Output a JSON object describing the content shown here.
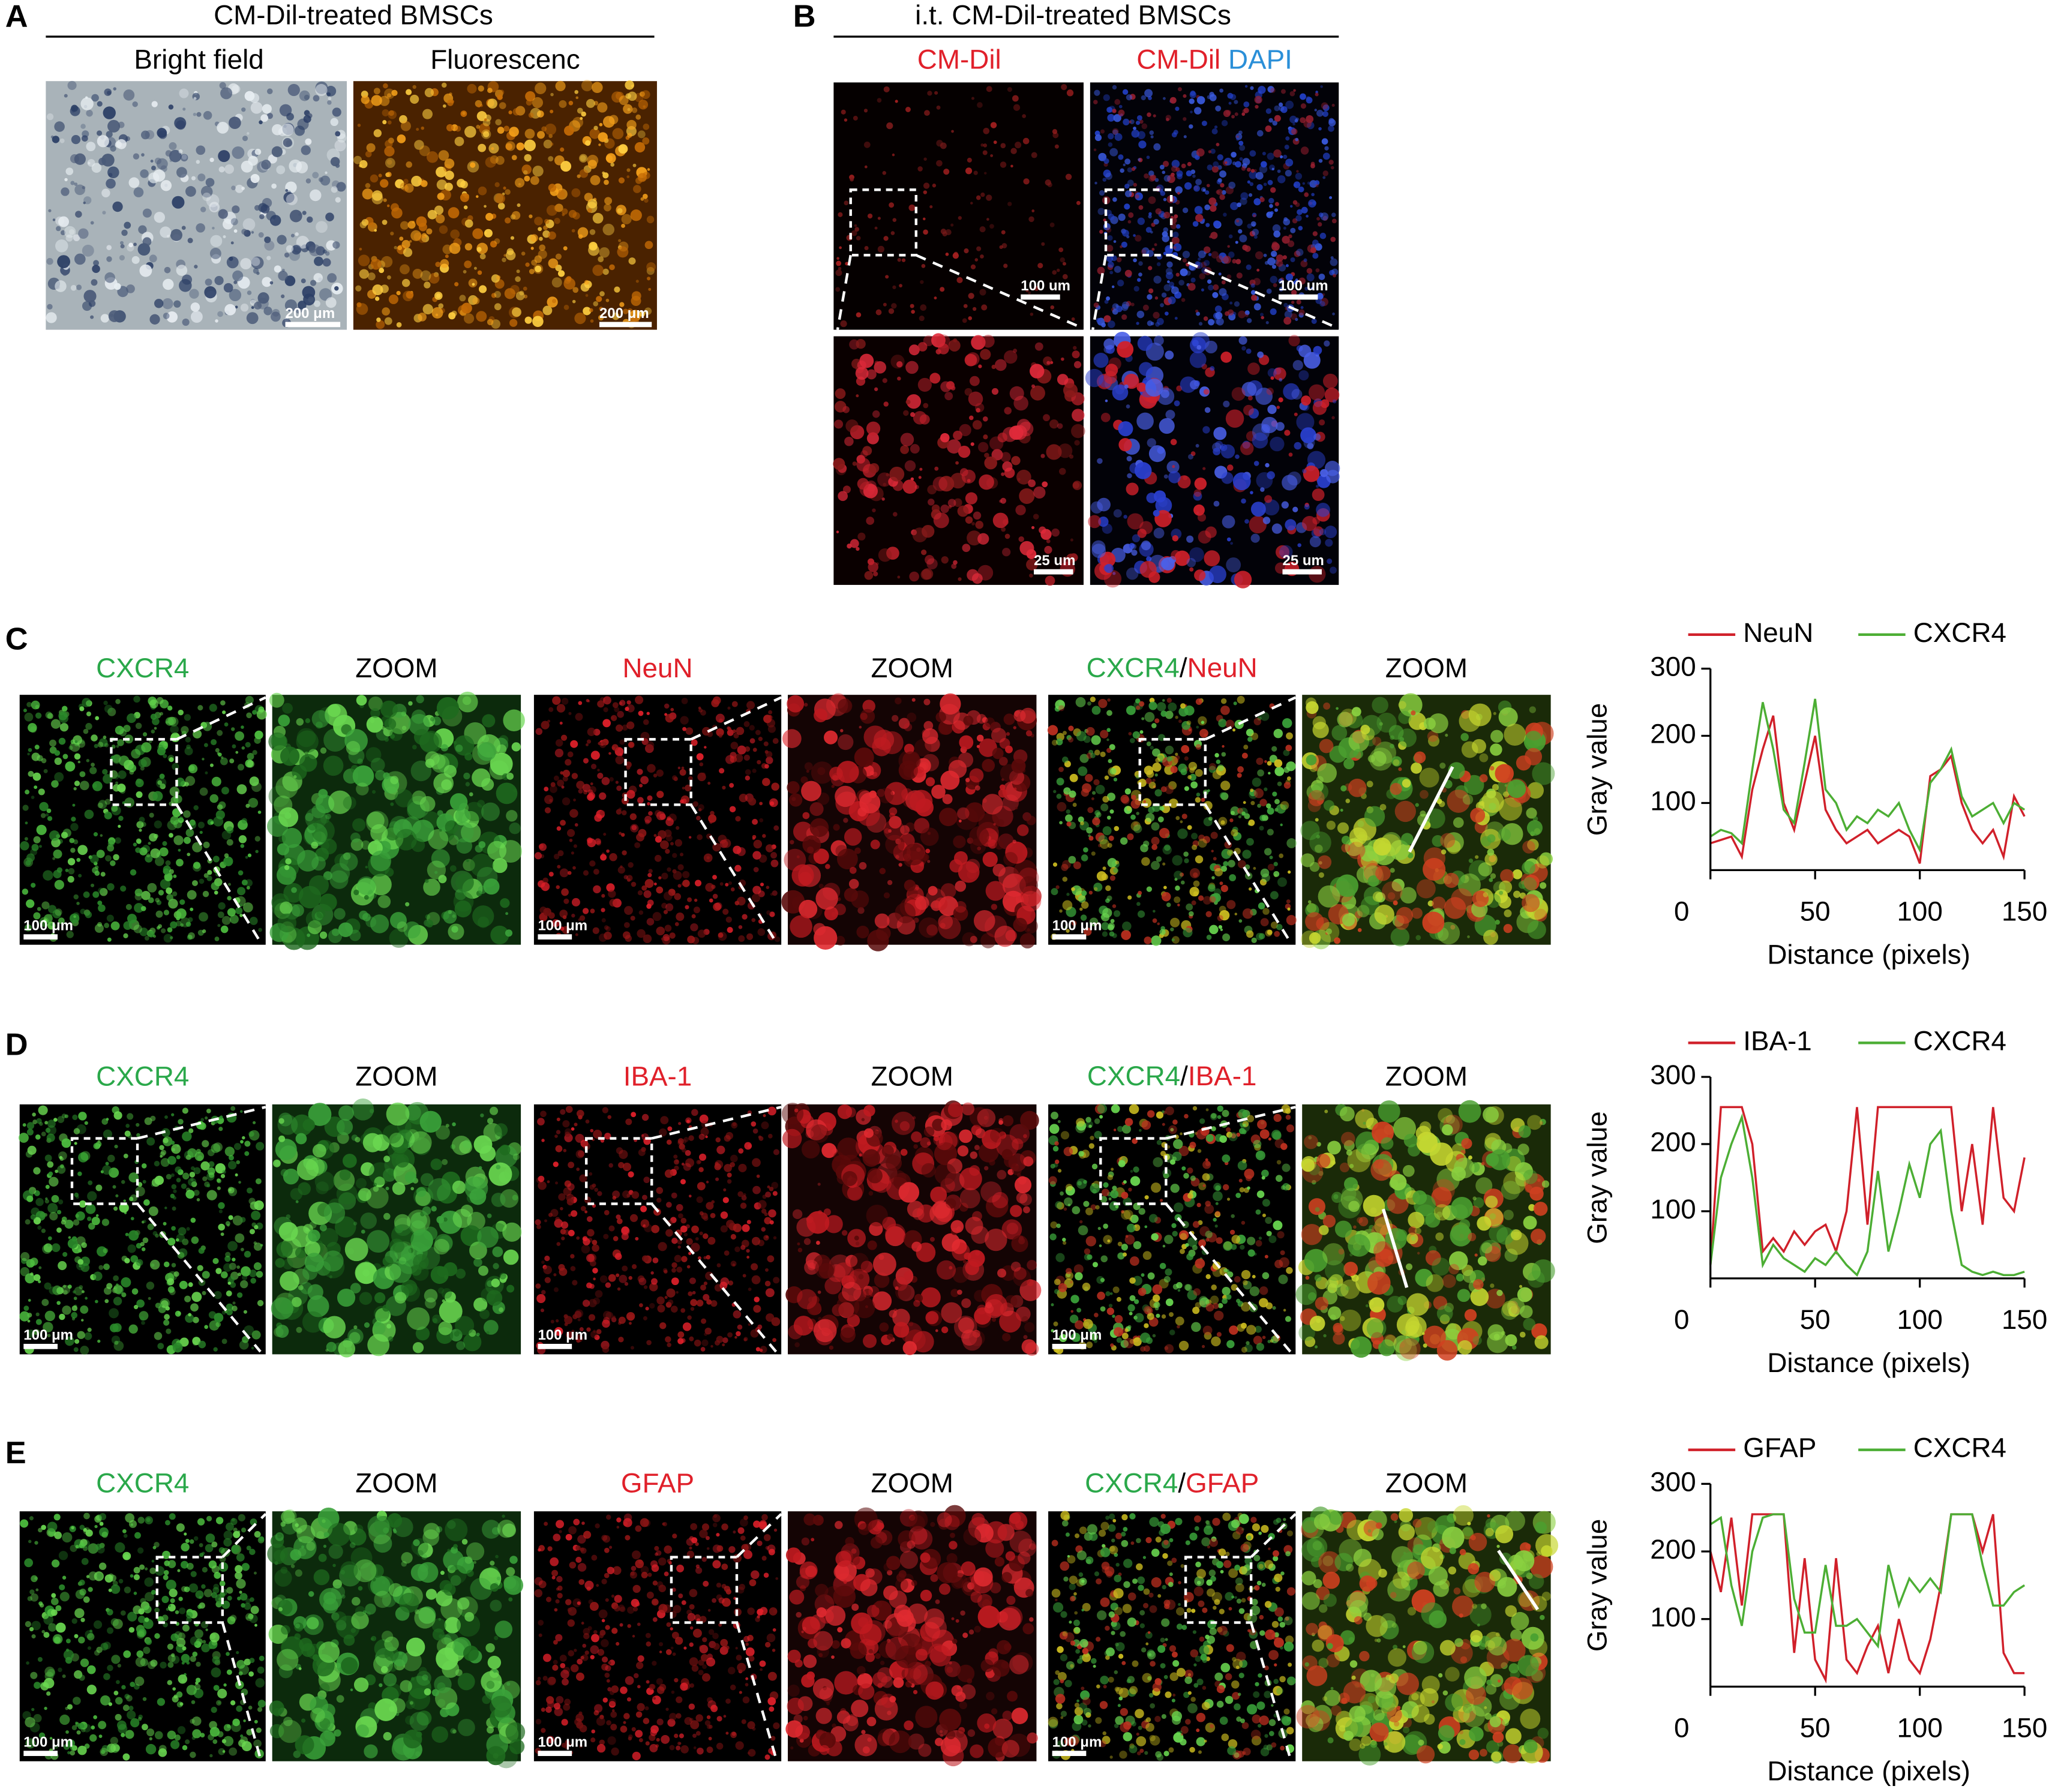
{
  "figure": {
    "A": {
      "letter": "A",
      "title": "CM-Dil-treated BMSCs",
      "columns": [
        "Bright field",
        "Fluorescenc"
      ],
      "scale_bars": [
        "200 μm",
        "200 μm"
      ]
    },
    "B": {
      "letter": "B",
      "title": "i.t. CM-Dil-treated BMSCs",
      "column1": "CM-Dil",
      "column2": [
        "CM-Dil",
        "DAPI"
      ],
      "scale_bars": [
        "100 um",
        "100 um",
        "25 um",
        "25 um"
      ]
    },
    "rows": [
      {
        "letter": "C",
        "labels": [
          "CXCR4",
          "ZOOM",
          "NeuN",
          "ZOOM"
        ],
        "merge": [
          "CXCR4",
          "/",
          "NeuN"
        ],
        "merge_zoom": "ZOOM",
        "scale_bars": [
          "100 μm",
          "100 μm",
          "100 μm"
        ]
      },
      {
        "letter": "D",
        "labels": [
          "CXCR4",
          "ZOOM",
          "IBA-1",
          "ZOOM"
        ],
        "merge": [
          "CXCR4",
          "/",
          "IBA-1"
        ],
        "merge_zoom": "ZOOM",
        "scale_bars": [
          "100 μm",
          "100 μm",
          "100 μm"
        ]
      },
      {
        "letter": "E",
        "labels": [
          "CXCR4",
          "ZOOM",
          "GFAP",
          "ZOOM"
        ],
        "merge": [
          "CXCR4",
          "/",
          "GFAP"
        ],
        "merge_zoom": "ZOOM",
        "scale_bars": [
          "100 μm",
          "100 μm",
          "100 μm"
        ]
      }
    ]
  },
  "chart_data": [
    {
      "type": "line",
      "x_label": "Distance (pixels)",
      "y_label": "Gray value",
      "x": [
        0,
        5,
        10,
        15,
        20,
        25,
        30,
        35,
        40,
        45,
        50,
        55,
        60,
        65,
        70,
        75,
        80,
        85,
        90,
        95,
        100,
        105,
        110,
        115,
        120,
        125,
        130,
        135,
        140,
        145,
        150
      ],
      "xlim": [
        0,
        150
      ],
      "xticks": [
        0,
        50,
        100,
        150
      ],
      "ylim": [
        0,
        300
      ],
      "yticks": [
        100,
        200,
        300
      ],
      "series": [
        {
          "name": "NeuN",
          "color": "#d0202a",
          "values": [
            40,
            45,
            50,
            20,
            120,
            180,
            230,
            100,
            60,
            130,
            200,
            90,
            60,
            40,
            50,
            60,
            40,
            50,
            60,
            50,
            10,
            140,
            150,
            170,
            100,
            60,
            40,
            60,
            20,
            110,
            80
          ]
        },
        {
          "name": "CXCR4",
          "color": "#4cae34",
          "values": [
            50,
            60,
            55,
            40,
            150,
            250,
            180,
            90,
            70,
            160,
            255,
            120,
            100,
            60,
            80,
            70,
            90,
            80,
            100,
            60,
            30,
            130,
            150,
            180,
            110,
            80,
            90,
            100,
            70,
            100,
            90
          ]
        }
      ]
    },
    {
      "type": "line",
      "x_label": "Distance (pixels)",
      "y_label": "Gray value",
      "x": [
        0,
        5,
        10,
        15,
        20,
        25,
        30,
        35,
        40,
        45,
        50,
        55,
        60,
        65,
        70,
        75,
        80,
        85,
        90,
        95,
        100,
        105,
        110,
        115,
        120,
        125,
        130,
        135,
        140,
        145,
        150
      ],
      "xlim": [
        0,
        150
      ],
      "xticks": [
        0,
        50,
        100,
        150
      ],
      "ylim": [
        0,
        300
      ],
      "yticks": [
        100,
        200,
        300
      ],
      "series": [
        {
          "name": "IBA-1",
          "color": "#d0202a",
          "values": [
            20,
            255,
            255,
            255,
            200,
            40,
            60,
            40,
            70,
            50,
            70,
            80,
            40,
            100,
            255,
            80,
            255,
            255,
            255,
            255,
            255,
            255,
            255,
            255,
            100,
            200,
            80,
            255,
            120,
            100,
            180
          ]
        },
        {
          "name": "CXCR4",
          "color": "#4cae34",
          "values": [
            20,
            150,
            200,
            240,
            150,
            20,
            50,
            30,
            20,
            10,
            30,
            20,
            40,
            20,
            5,
            40,
            160,
            40,
            100,
            170,
            120,
            200,
            220,
            100,
            20,
            10,
            5,
            10,
            5,
            5,
            10
          ]
        }
      ]
    },
    {
      "type": "line",
      "x_label": "Distance (pixels)",
      "y_label": "Gray value",
      "x": [
        0,
        5,
        10,
        15,
        20,
        25,
        30,
        35,
        40,
        45,
        50,
        55,
        60,
        65,
        70,
        75,
        80,
        85,
        90,
        95,
        100,
        105,
        110,
        115,
        120,
        125,
        130,
        135,
        140,
        145,
        150
      ],
      "xlim": [
        0,
        150
      ],
      "xticks": [
        0,
        50,
        100,
        150
      ],
      "ylim": [
        0,
        300
      ],
      "yticks": [
        100,
        200,
        300
      ],
      "series": [
        {
          "name": "GFAP",
          "color": "#d0202a",
          "values": [
            200,
            140,
            250,
            120,
            255,
            255,
            255,
            255,
            50,
            190,
            40,
            10,
            190,
            40,
            20,
            60,
            90,
            20,
            100,
            40,
            20,
            70,
            150,
            255,
            255,
            255,
            200,
            255,
            50,
            20,
            20
          ]
        },
        {
          "name": "CXCR4",
          "color": "#4cae34",
          "values": [
            240,
            250,
            150,
            90,
            200,
            250,
            255,
            255,
            130,
            80,
            80,
            180,
            90,
            90,
            100,
            80,
            60,
            180,
            120,
            160,
            140,
            160,
            140,
            255,
            255,
            255,
            180,
            120,
            120,
            140,
            150
          ]
        }
      ]
    }
  ]
}
